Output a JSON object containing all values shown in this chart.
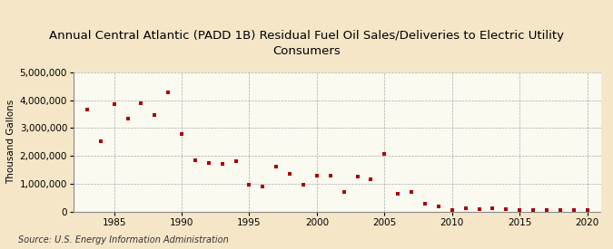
{
  "title": "Annual Central Atlantic (PADD 1B) Residual Fuel Oil Sales/Deliveries to Electric Utility\nConsumers",
  "ylabel": "Thousand Gallons",
  "source": "Source: U.S. Energy Information Administration",
  "background_color": "#f5e6c8",
  "plot_background_color": "#fafaf0",
  "marker_color": "#aa0000",
  "years": [
    1983,
    1984,
    1985,
    1986,
    1987,
    1988,
    1989,
    1990,
    1991,
    1992,
    1993,
    1994,
    1995,
    1996,
    1997,
    1998,
    1999,
    2000,
    2001,
    2002,
    2003,
    2004,
    2005,
    2006,
    2007,
    2008,
    2009,
    2010,
    2011,
    2012,
    2013,
    2014,
    2015,
    2016,
    2017,
    2018,
    2019,
    2020
  ],
  "values": [
    3650000,
    2520000,
    3850000,
    3350000,
    3900000,
    3450000,
    4280000,
    2800000,
    1850000,
    1750000,
    1700000,
    1820000,
    980000,
    890000,
    1600000,
    1360000,
    950000,
    1300000,
    1280000,
    700000,
    1260000,
    1170000,
    2060000,
    630000,
    720000,
    270000,
    200000,
    60000,
    110000,
    100000,
    130000,
    75000,
    60000,
    60000,
    50000,
    55000,
    45000,
    50000
  ],
  "xlim": [
    1982,
    2021
  ],
  "ylim": [
    0,
    5000000
  ],
  "yticks": [
    0,
    1000000,
    2000000,
    3000000,
    4000000,
    5000000
  ],
  "xticks": [
    1985,
    1990,
    1995,
    2000,
    2005,
    2010,
    2015,
    2020
  ],
  "grid_color": "#aaaaaa",
  "title_fontsize": 9.5,
  "tick_fontsize": 7.5,
  "ylabel_fontsize": 7.5,
  "source_fontsize": 7
}
